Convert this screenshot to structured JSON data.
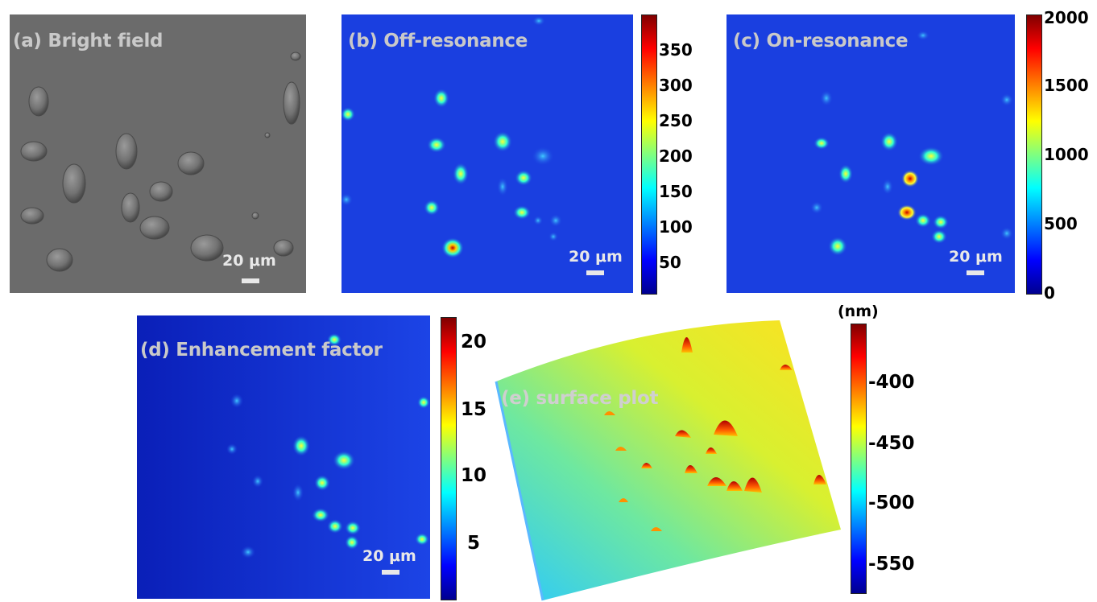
{
  "panels": {
    "a": {
      "label": "(a) Bright field",
      "scale": "20 μm"
    },
    "b": {
      "label": "(b) Off-resonance",
      "scale": "20 μm",
      "colorbar": [
        "350",
        "300",
        "250",
        "200",
        "150",
        "100",
        "50"
      ]
    },
    "c": {
      "label": "(c) On-resonance",
      "scale": "20 μm",
      "colorbar": [
        "2000",
        "1500",
        "1000",
        "500",
        "0"
      ]
    },
    "d": {
      "label": "(d) Enhancement factor",
      "scale": "20 μm",
      "colorbar": [
        "20",
        "15",
        "10",
        "5"
      ]
    },
    "e": {
      "label": "(e) surface plot",
      "unit": "(nm)",
      "colorbar": [
        "-400",
        "-450",
        "-500",
        "-550"
      ]
    }
  },
  "colors": {
    "jet": [
      "#00008f",
      "#0000ff",
      "#00ffff",
      "#ffff00",
      "#ff0000",
      "#800000"
    ],
    "map_background": "#1a3fe0",
    "brightfield_background": "#6b6b6b",
    "label_text": "#c9c9c9"
  }
}
